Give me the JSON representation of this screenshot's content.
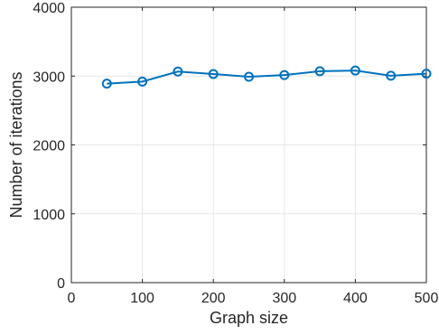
{
  "chart_data": {
    "type": "line",
    "xlabel": "Graph size",
    "ylabel": "Number of iterations",
    "xlim": [
      0,
      500
    ],
    "ylim": [
      0,
      4000
    ],
    "xticks": [
      0,
      100,
      200,
      300,
      400,
      500
    ],
    "yticks": [
      0,
      1000,
      2000,
      3000,
      4000
    ],
    "grid": true,
    "series": [
      {
        "x": [
          50,
          100,
          150,
          200,
          250,
          300,
          350,
          400,
          450,
          500
        ],
        "y": [
          2890,
          2920,
          3065,
          3030,
          2990,
          3015,
          3070,
          3080,
          3005,
          3035
        ],
        "color": "#0072BD",
        "marker": "circle"
      }
    ]
  }
}
